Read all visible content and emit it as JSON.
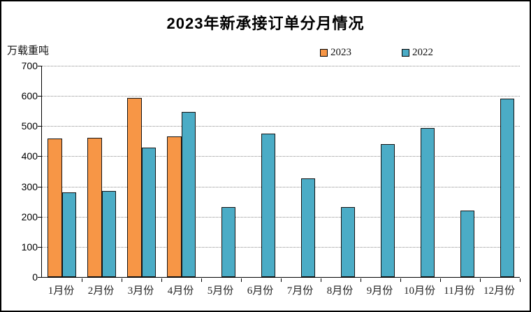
{
  "title": "2023年新承接订单分月情况",
  "y_axis_unit": "万载重吨",
  "chart_data": {
    "type": "bar",
    "title": "2023年新承接订单分月情况",
    "xlabel": "",
    "ylabel": "万载重吨",
    "categories": [
      "1月份",
      "2月份",
      "3月份",
      "4月份",
      "5月份",
      "6月份",
      "7月份",
      "8月份",
      "9月份",
      "10月份",
      "11月份",
      "12月份"
    ],
    "series": [
      {
        "name": "2023",
        "color": "#F79646",
        "values": [
          460,
          462,
          593,
          467,
          null,
          null,
          null,
          null,
          null,
          null,
          null,
          null
        ]
      },
      {
        "name": "2022",
        "color": "#4BACC6",
        "values": [
          281,
          284,
          428,
          546,
          231,
          476,
          326,
          232,
          440,
          493,
          220,
          591
        ]
      }
    ],
    "ylim": [
      0,
      700
    ],
    "y_ticks": [
      0,
      100,
      200,
      300,
      400,
      500,
      600,
      700
    ],
    "grid": "horizontal-dotted",
    "legend_position": "top-right-above-plot",
    "bar_border_color": "#141414",
    "gridline_color": "#8c8c8c"
  }
}
